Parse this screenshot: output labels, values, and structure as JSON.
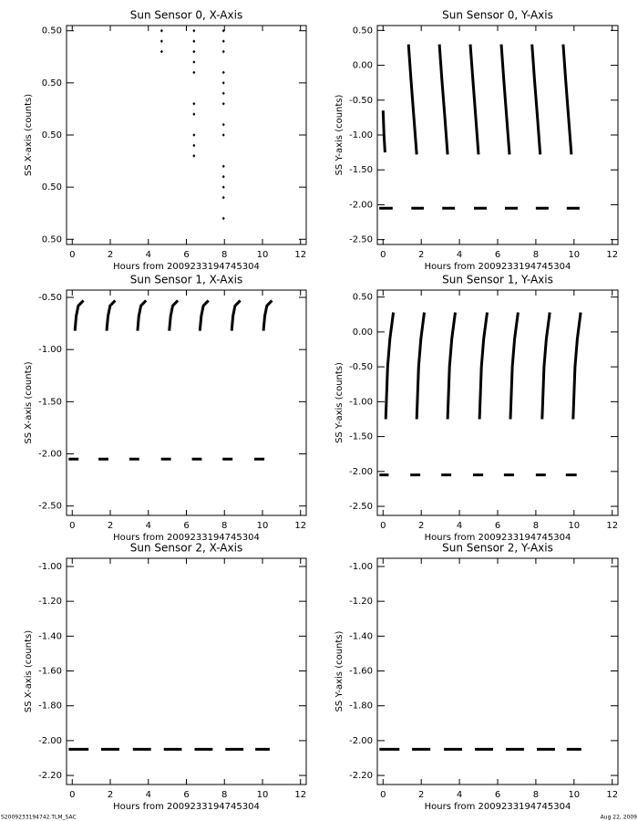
{
  "chart_data": [
    {
      "type": "scatter",
      "title": "Sun Sensor 0, X-Axis",
      "xlabel": "Hours from 2009233194745304",
      "ylabel": "SS X-axis (counts)",
      "color": "#000000",
      "xlim": [
        -0.3,
        12.3
      ],
      "xticks": [
        0,
        2,
        4,
        6,
        8,
        10,
        12
      ],
      "ylim": [
        0.49979,
        0.50021
      ],
      "yticks": [
        {
          "value": 0.4998,
          "label": "0.50"
        },
        {
          "value": 0.4999,
          "label": "0.50"
        },
        {
          "value": 0.5,
          "label": "0.50"
        },
        {
          "value": 0.5001,
          "label": "0.50"
        },
        {
          "value": 0.5002,
          "label": "0.50"
        }
      ],
      "series": [
        {
          "x": [
            4.7,
            4.7,
            4.7,
            6.4,
            6.4,
            6.4,
            6.4,
            6.4,
            6.4,
            6.4,
            6.4,
            6.4,
            6.4,
            7.95,
            7.95,
            7.95,
            7.95,
            7.95,
            7.95,
            7.95,
            7.95,
            7.95,
            7.95,
            7.95,
            7.95,
            7.95,
            7.95
          ],
          "y": [
            0.5002,
            0.50018,
            0.50016,
            0.5002,
            0.50018,
            0.50016,
            0.50014,
            0.50012,
            0.50006,
            0.50004,
            0.5,
            0.49998,
            0.49996,
            0.5002,
            0.50018,
            0.50016,
            0.50012,
            0.5001,
            0.50008,
            0.50006,
            0.50002,
            0.5,
            0.49994,
            0.49992,
            0.4999,
            0.49988,
            0.49984
          ]
        }
      ]
    },
    {
      "type": "line",
      "title": "Sun Sensor 0, Y-Axis",
      "xlabel": "Hours from 2009233194745304",
      "ylabel": "SS Y-axis (counts)",
      "color": "#000000",
      "xlim": [
        -0.3,
        12.3
      ],
      "xticks": [
        0,
        2,
        4,
        6,
        8,
        10,
        12
      ],
      "ylim": [
        -2.57,
        0.57
      ],
      "yticks": [
        {
          "value": 0.5,
          "label": "0.50"
        },
        {
          "value": 0,
          "label": "0.00"
        },
        {
          "value": -0.5,
          "label": "-0.50"
        },
        {
          "value": -1,
          "label": "-1.00"
        },
        {
          "value": -1.5,
          "label": "-1.50"
        },
        {
          "value": -2,
          "label": "-2.00"
        },
        {
          "value": -2.5,
          "label": "-2.50"
        }
      ],
      "series": [
        {
          "x": [
            0.0,
            0.05,
            0.1,
            null,
            1.33,
            1.46,
            1.6,
            1.76,
            null,
            2.95,
            3.08,
            3.22,
            3.38,
            null,
            4.57,
            4.7,
            4.84,
            5.0,
            null,
            6.19,
            6.32,
            6.46,
            6.62,
            null,
            7.8,
            7.93,
            8.07,
            8.23,
            null,
            9.43,
            9.56,
            9.7,
            9.86,
            null,
            -0.2,
            0.5,
            null,
            1.48,
            2.14,
            null,
            3.1,
            3.76,
            null,
            4.76,
            5.43,
            null,
            6.38,
            7.05,
            null,
            8.0,
            8.67,
            null,
            9.62,
            10.29
          ],
          "y": [
            -0.65,
            -1.0,
            -1.25,
            null,
            0.3,
            -0.2,
            -0.7,
            -1.28,
            null,
            0.3,
            -0.2,
            -0.7,
            -1.28,
            null,
            0.3,
            -0.2,
            -0.7,
            -1.28,
            null,
            0.3,
            -0.2,
            -0.7,
            -1.28,
            null,
            0.3,
            -0.2,
            -0.7,
            -1.28,
            null,
            0.3,
            -0.2,
            -0.7,
            -1.28,
            null,
            -2.05,
            -2.05,
            null,
            -2.05,
            -2.05,
            null,
            -2.05,
            -2.05,
            null,
            -2.05,
            -2.05,
            null,
            -2.05,
            -2.05,
            null,
            -2.05,
            -2.05,
            null,
            -2.05,
            -2.05
          ]
        }
      ]
    },
    {
      "type": "line",
      "title": "Sun Sensor 1, X-Axis",
      "xlabel": "Hours from 2009233194745304",
      "ylabel": "SS X-axis (counts)",
      "color": "#000000",
      "xlim": [
        -0.3,
        12.3
      ],
      "xticks": [
        0,
        2,
        4,
        6,
        8,
        10,
        12
      ],
      "ylim": [
        -2.59,
        -0.43
      ],
      "yticks": [
        {
          "value": -0.5,
          "label": "-0.50"
        },
        {
          "value": -1,
          "label": "-1.00"
        },
        {
          "value": -1.5,
          "label": "-1.50"
        },
        {
          "value": -2,
          "label": "-2.00"
        },
        {
          "value": -2.5,
          "label": "-2.50"
        }
      ],
      "series": [
        {
          "x": [
            0.14,
            0.21,
            0.32,
            0.59,
            null,
            1.81,
            1.88,
            1.99,
            2.26,
            null,
            3.43,
            3.5,
            3.61,
            3.88,
            null,
            5.1,
            5.17,
            5.28,
            5.55,
            null,
            6.71,
            6.78,
            6.89,
            7.16,
            null,
            8.38,
            8.45,
            8.56,
            8.83,
            null,
            10.05,
            10.12,
            10.23,
            10.5,
            null,
            -0.19,
            0.33,
            null,
            1.38,
            1.9,
            null,
            3.0,
            3.52,
            null,
            4.67,
            5.19,
            null,
            6.29,
            6.81,
            null,
            7.9,
            8.43,
            null,
            9.57,
            10.1
          ],
          "y": [
            -0.82,
            -0.68,
            -0.58,
            -0.53,
            null,
            -0.82,
            -0.68,
            -0.58,
            -0.53,
            null,
            -0.82,
            -0.68,
            -0.58,
            -0.53,
            null,
            -0.82,
            -0.68,
            -0.58,
            -0.53,
            null,
            -0.82,
            -0.68,
            -0.58,
            -0.53,
            null,
            -0.82,
            -0.68,
            -0.58,
            -0.53,
            null,
            -0.82,
            -0.68,
            -0.58,
            -0.53,
            null,
            -2.05,
            -2.05,
            null,
            -2.05,
            -2.05,
            null,
            -2.05,
            -2.05,
            null,
            -2.05,
            -2.05,
            null,
            -2.05,
            -2.05,
            null,
            -2.05,
            -2.05,
            null,
            -2.05,
            -2.05
          ]
        }
      ]
    },
    {
      "type": "line",
      "title": "Sun Sensor 1, Y-Axis",
      "xlabel": "Hours from 2009233194745304",
      "ylabel": "SS Y-axis (counts)",
      "color": "#000000",
      "xlim": [
        -0.3,
        12.3
      ],
      "xticks": [
        0,
        2,
        4,
        6,
        8,
        10,
        12
      ],
      "ylim": [
        -2.63,
        0.6
      ],
      "yticks": [
        {
          "value": 0.5,
          "label": "0.50"
        },
        {
          "value": 0,
          "label": "0.00"
        },
        {
          "value": -0.5,
          "label": "-0.50"
        },
        {
          "value": -1,
          "label": "-1.00"
        },
        {
          "value": -1.5,
          "label": "-1.50"
        },
        {
          "value": -2,
          "label": "-2.00"
        },
        {
          "value": -2.5,
          "label": "-2.50"
        }
      ],
      "series": [
        {
          "x": [
            0.14,
            0.24,
            0.36,
            0.54,
            null,
            1.76,
            1.86,
            1.98,
            2.16,
            null,
            3.38,
            3.48,
            3.6,
            3.78,
            null,
            5.05,
            5.15,
            5.27,
            5.45,
            null,
            6.67,
            6.77,
            6.89,
            7.07,
            null,
            8.33,
            8.43,
            8.55,
            8.73,
            null,
            9.95,
            10.05,
            10.17,
            10.35,
            null,
            -0.19,
            0.29,
            null,
            1.43,
            1.95,
            null,
            3.05,
            3.57,
            null,
            4.71,
            5.24,
            null,
            6.33,
            6.86,
            null,
            8.0,
            8.52,
            null,
            9.57,
            10.14
          ],
          "y": [
            -1.25,
            -0.5,
            -0.1,
            0.28,
            null,
            -1.25,
            -0.5,
            -0.1,
            0.28,
            null,
            -1.25,
            -0.5,
            -0.1,
            0.28,
            null,
            -1.25,
            -0.5,
            -0.1,
            0.28,
            null,
            -1.25,
            -0.5,
            -0.1,
            0.28,
            null,
            -1.25,
            -0.5,
            -0.1,
            0.28,
            null,
            -1.25,
            -0.5,
            -0.1,
            0.28,
            null,
            -2.05,
            -2.05,
            null,
            -2.05,
            -2.05,
            null,
            -2.05,
            -2.05,
            null,
            -2.05,
            -2.05,
            null,
            -2.05,
            -2.05,
            null,
            -2.05,
            -2.05,
            null,
            -2.05,
            -2.05
          ]
        }
      ]
    },
    {
      "type": "line",
      "title": "Sun Sensor 2, X-Axis",
      "xlabel": "Hours from 2009233194745304",
      "ylabel": "SS X-axis (counts)",
      "color": "#000000",
      "xlim": [
        -0.3,
        12.3
      ],
      "xticks": [
        0,
        2,
        4,
        6,
        8,
        10,
        12
      ],
      "ylim": [
        -2.252,
        -0.953
      ],
      "yticks": [
        {
          "value": -1,
          "label": "-1.00"
        },
        {
          "value": -1.2,
          "label": "-1.20"
        },
        {
          "value": -1.4,
          "label": "-1.40"
        },
        {
          "value": -1.6,
          "label": "-1.60"
        },
        {
          "value": -1.8,
          "label": "-1.80"
        },
        {
          "value": -2,
          "label": "-2.00"
        },
        {
          "value": -2.2,
          "label": "-2.20"
        }
      ],
      "series": [
        {
          "x": [
            -0.19,
            0.86,
            null,
            1.52,
            2.48,
            null,
            3.19,
            4.14,
            null,
            4.81,
            5.76,
            null,
            6.43,
            7.38,
            null,
            8.05,
            9.0,
            null,
            9.62,
            10.38
          ],
          "y": [
            -2.05,
            -2.05,
            null,
            -2.05,
            -2.05,
            null,
            -2.05,
            -2.05,
            null,
            -2.05,
            -2.05,
            null,
            -2.05,
            -2.05,
            null,
            -2.05,
            -2.05,
            null,
            -2.05,
            -2.05
          ]
        }
      ]
    },
    {
      "type": "line",
      "title": "Sun Sensor 2, Y-Axis",
      "xlabel": "Hours from 2009233194745304",
      "ylabel": "SS Y-axis (counts)",
      "color": "#000000",
      "xlim": [
        -0.3,
        12.3
      ],
      "xticks": [
        0,
        2,
        4,
        6,
        8,
        10,
        12
      ],
      "ylim": [
        -2.252,
        -0.953
      ],
      "yticks": [
        {
          "value": -1,
          "label": "-1.00"
        },
        {
          "value": -1.2,
          "label": "-1.20"
        },
        {
          "value": -1.4,
          "label": "-1.40"
        },
        {
          "value": -1.6,
          "label": "-1.60"
        },
        {
          "value": -1.8,
          "label": "-1.80"
        },
        {
          "value": -2,
          "label": "-2.00"
        },
        {
          "value": -2.2,
          "label": "-2.20"
        }
      ],
      "series": [
        {
          "x": [
            -0.19,
            0.86,
            null,
            1.52,
            2.48,
            null,
            3.19,
            4.14,
            null,
            4.81,
            5.76,
            null,
            6.43,
            7.38,
            null,
            8.05,
            9.0,
            null,
            9.62,
            10.38
          ],
          "y": [
            -2.05,
            -2.05,
            null,
            -2.05,
            -2.05,
            null,
            -2.05,
            -2.05,
            null,
            -2.05,
            -2.05,
            null,
            -2.05,
            -2.05,
            null,
            -2.05,
            -2.05,
            null,
            -2.05,
            -2.05
          ]
        }
      ]
    }
  ],
  "footer": {
    "left": "S2009233194742.TLM_SAC",
    "right": "Aug 22, 2009"
  }
}
